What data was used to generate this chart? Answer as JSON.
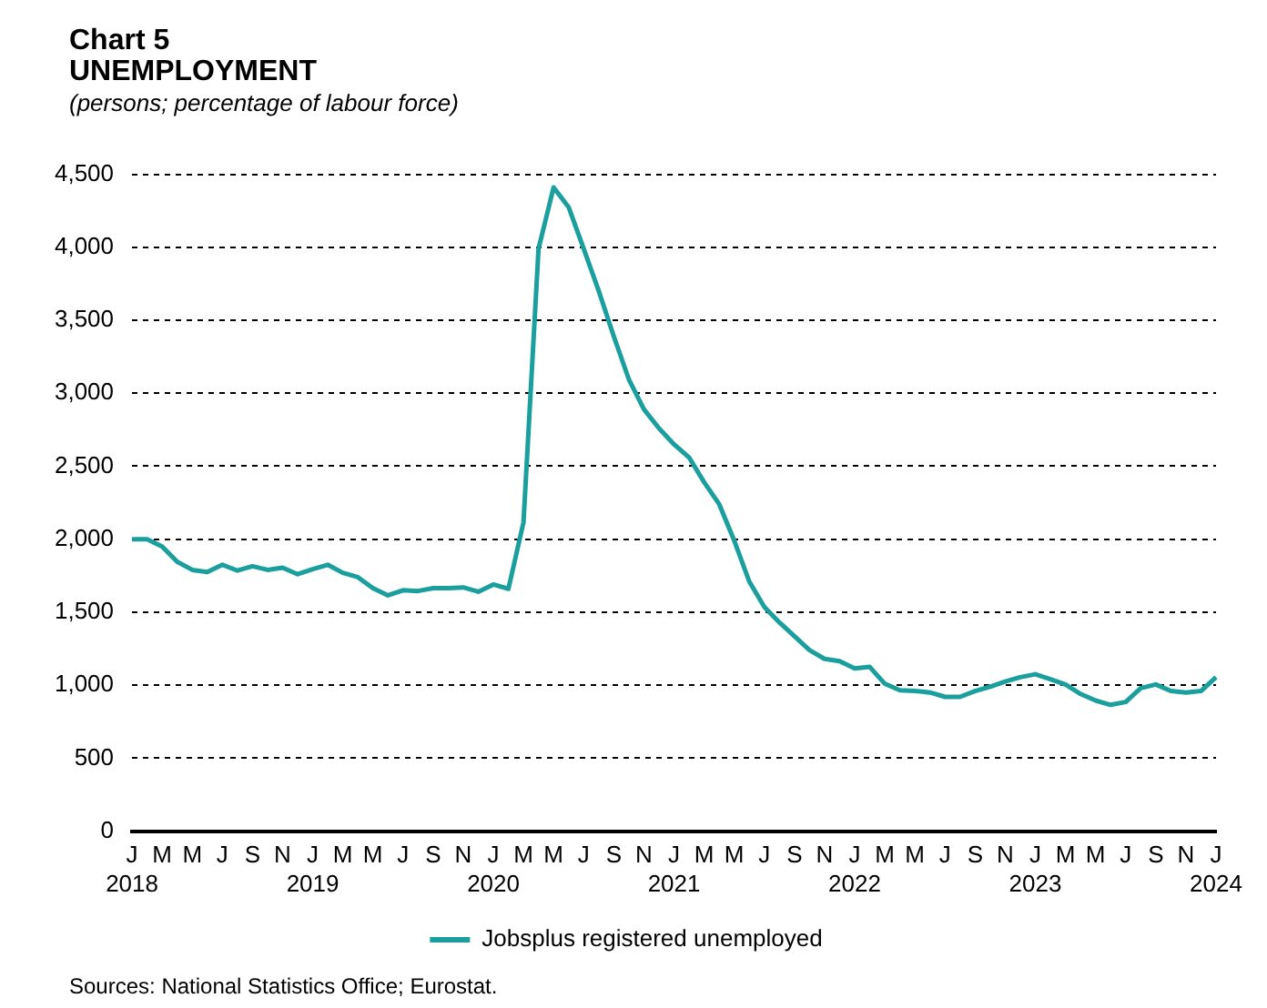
{
  "chart_data": {
    "type": "line",
    "title": "Chart 5",
    "subtitle": "UNEMPLOYMENT",
    "ylabel": "(persons; percentage of labour force)",
    "categories": [
      "J\n2018",
      null,
      "M",
      null,
      "M",
      null,
      "J",
      null,
      "S",
      null,
      "N",
      null,
      "J\n2019",
      null,
      "M",
      null,
      "M",
      null,
      "J",
      null,
      "S",
      null,
      "N",
      null,
      "J\n2020",
      null,
      "M",
      null,
      "M",
      null,
      "J",
      null,
      "S",
      null,
      "N",
      null,
      "J\n2021",
      null,
      "M",
      null,
      "M",
      null,
      "J",
      null,
      "S",
      null,
      "N",
      null,
      "J\n2022",
      null,
      "M",
      null,
      "M",
      null,
      "J",
      null,
      "S",
      null,
      "N",
      null,
      "J\n2023",
      null,
      "M",
      null,
      "M",
      null,
      "J",
      null,
      "S",
      null,
      "N",
      null,
      "J\n2024"
    ],
    "series": [
      {
        "name": "Jobsplus registered unemployed",
        "color": "#1a9e9e",
        "values": [
          2000,
          2000,
          1950,
          1845,
          1790,
          1775,
          1825,
          1785,
          1815,
          1790,
          1805,
          1760,
          1795,
          1825,
          1770,
          1740,
          1665,
          1615,
          1650,
          1645,
          1665,
          1665,
          1670,
          1640,
          1690,
          1660,
          2115,
          3990,
          4410,
          4275,
          3990,
          3700,
          3390,
          3095,
          2890,
          2760,
          2650,
          2560,
          2390,
          2240,
          1990,
          1710,
          1535,
          1430,
          1335,
          1240,
          1180,
          1165,
          1115,
          1125,
          1010,
          965,
          960,
          950,
          920,
          920,
          960,
          990,
          1025,
          1055,
          1075,
          1040,
          1005,
          940,
          895,
          865,
          885,
          980,
          1005,
          960,
          950,
          960,
          1055
        ]
      }
    ],
    "ylim": [
      0,
      4500
    ],
    "yticks": [
      {
        "value": 0,
        "label": "0"
      },
      {
        "value": 500,
        "label": "500"
      },
      {
        "value": 1000,
        "label": "1,000"
      },
      {
        "value": 1500,
        "label": "1,500"
      },
      {
        "value": 2000,
        "label": "2,000"
      },
      {
        "value": 2500,
        "label": "2,500"
      },
      {
        "value": 3000,
        "label": "3,000"
      },
      {
        "value": 3500,
        "label": "3,500"
      },
      {
        "value": 4000,
        "label": "4,000"
      },
      {
        "value": 4500,
        "label": "4,500"
      }
    ],
    "grid": "y",
    "legend": "bottom",
    "marker": "none",
    "line_style": "solid",
    "annotations": [
      "Sources: National Statistics Office; Eurostat."
    ]
  }
}
